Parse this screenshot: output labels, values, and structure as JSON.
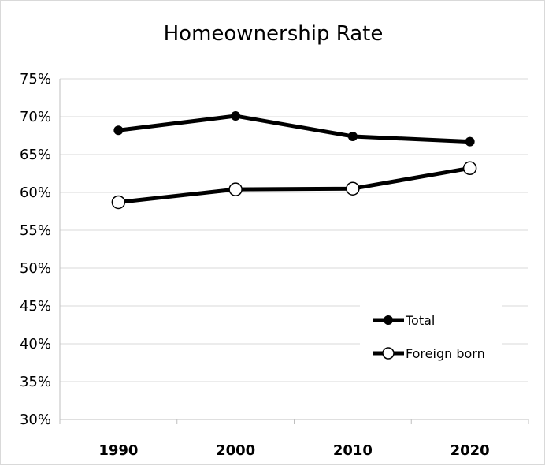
{
  "chart_data": {
    "type": "line",
    "title": "Homeownership Rate",
    "xlabel": "",
    "ylabel": "",
    "categories": [
      "1990",
      "2000",
      "2010",
      "2020"
    ],
    "y_ticks": [
      "30%",
      "35%",
      "40%",
      "45%",
      "50%",
      "55%",
      "60%",
      "65%",
      "70%",
      "75%"
    ],
    "ylim": [
      30,
      75
    ],
    "y_unit": "%",
    "grid": "horizontal",
    "legend_position": "right",
    "series": [
      {
        "name": "Total",
        "values": [
          68.2,
          70.1,
          67.4,
          66.7
        ],
        "marker": "filled-circle",
        "color": "#000000"
      },
      {
        "name": "Foreign born",
        "values": [
          58.7,
          60.4,
          60.5,
          63.2
        ],
        "marker": "open-circle",
        "color": "#000000"
      }
    ]
  }
}
